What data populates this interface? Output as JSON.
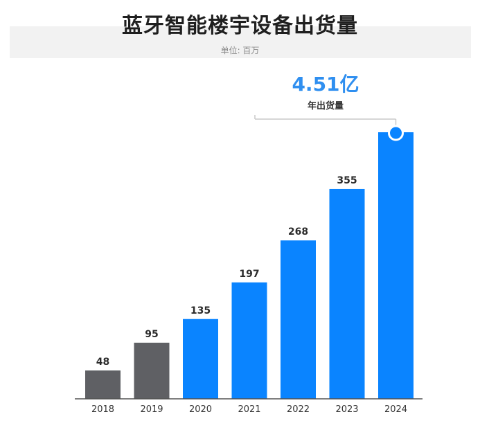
{
  "chart_data": {
    "type": "bar",
    "title": "蓝牙智能楼宇设备出货量",
    "subtitle": "单位: 百万",
    "categories": [
      "2018",
      "2019",
      "2020",
      "2021",
      "2022",
      "2023",
      "2024"
    ],
    "values": [
      48,
      95,
      135,
      197,
      268,
      355,
      451
    ],
    "value_labels": [
      "48",
      "95",
      "135",
      "197",
      "268",
      "355",
      ""
    ],
    "ylim": [
      0,
      451
    ],
    "grid": false,
    "colors": {
      "historical": "#5f6064",
      "forecast": "#0a84ff",
      "axis": "#555555"
    },
    "historical_count": 2,
    "annotation": {
      "value": "4.51亿",
      "label": "年出货量",
      "target_category": "2024",
      "color": "#2f8ff0"
    }
  }
}
